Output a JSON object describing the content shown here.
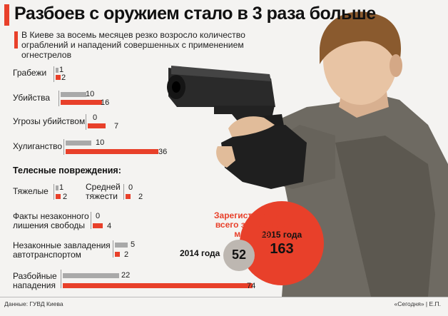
{
  "title": "Разбоев с оружием стало в 3 раза больше",
  "subtitle": "В Киеве за восемь месяцев резко возросло количество ограблений и нападений совершенных с применением огнестрелов",
  "colors": {
    "y2014": "#a9a9a9",
    "y2015": "#e8402a",
    "accent": "#e8402a"
  },
  "chart_data": {
    "type": "bar",
    "orientation": "horizontal",
    "series": [
      {
        "name": "2014",
        "color": "#a9a9a9"
      },
      {
        "name": "2015",
        "color": "#e8402a"
      }
    ],
    "categories": [
      {
        "label": "Грабежи",
        "v2014": 1,
        "v2015": 2
      },
      {
        "label": "Убийства",
        "v2014": 10,
        "v2015": 16
      },
      {
        "label": "Угрозы убийством",
        "v2014": 0,
        "v2015": 7
      },
      {
        "label": "Хулиганство",
        "v2014": 10,
        "v2015": 36
      },
      {
        "label": "Тяжелые",
        "v2014": 1,
        "v2015": 2
      },
      {
        "label": "Средней тяжести",
        "v2014": 0,
        "v2015": 2
      },
      {
        "label": "Факты незаконного лишения свободы",
        "v2014": 0,
        "v2015": 4
      },
      {
        "label": "Незаконные завладения автотранспортом",
        "v2014": 5,
        "v2015": 2
      },
      {
        "label": "Разбойные нападения",
        "v2014": 22,
        "v2015": 74
      }
    ],
    "section_heading": "Телесные повреждения:",
    "totals": {
      "label": "Зарегистрировано всего за первые 8 месяцев:",
      "y2014_label": "2014 года",
      "y2014_value": 52,
      "y2015_label": "2015 года",
      "y2015_value": 163
    }
  },
  "source": "Данные: ГУВД Киева",
  "credit": "«Сегодня» | Е.П."
}
